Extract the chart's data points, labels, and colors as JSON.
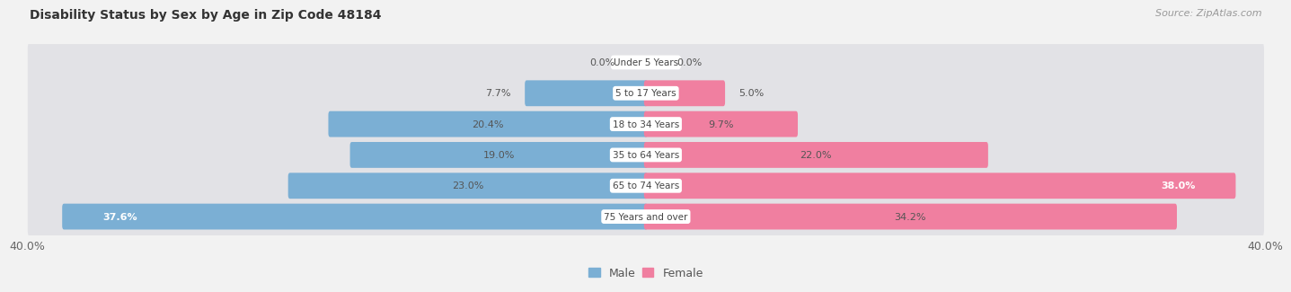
{
  "title": "Disability Status by Sex by Age in Zip Code 48184",
  "source": "Source: ZipAtlas.com",
  "categories": [
    "Under 5 Years",
    "5 to 17 Years",
    "18 to 34 Years",
    "35 to 64 Years",
    "65 to 74 Years",
    "75 Years and over"
  ],
  "male_values": [
    0.0,
    7.7,
    20.4,
    19.0,
    23.0,
    37.6
  ],
  "female_values": [
    0.0,
    5.0,
    9.7,
    22.0,
    38.0,
    34.2
  ],
  "male_color": "#7bafd4",
  "female_color": "#f07fa0",
  "male_label": "Male",
  "female_label": "Female",
  "axis_max": 40.0,
  "x_tick_left": "40.0%",
  "x_tick_right": "40.0%",
  "bg_color": "#f2f2f2",
  "row_bg_color": "#e2e2e6",
  "title_color": "#555555",
  "source_color": "#999999"
}
